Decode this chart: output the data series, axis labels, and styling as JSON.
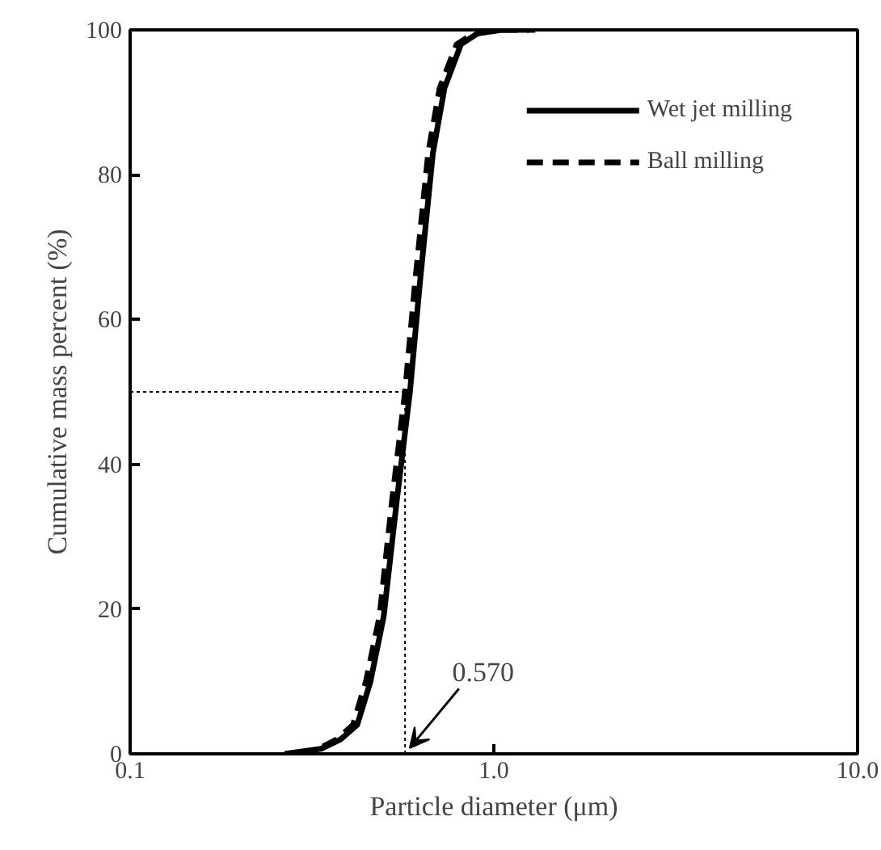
{
  "chart_data": {
    "type": "line",
    "xlabel": "Particle diameter (μm)",
    "ylabel": "Cumulative mass percent (%)",
    "log": "x",
    "xlim": [
      0.1,
      10
    ],
    "ylim": [
      0,
      100
    ],
    "xticks": [
      {
        "value": 0.1,
        "label": "0.1"
      },
      {
        "value": 1,
        "label": "1.0"
      },
      {
        "value": 10,
        "label": "10.0"
      }
    ],
    "yticks": [
      0,
      20,
      40,
      60,
      80,
      100
    ],
    "grid": false,
    "legend": "top right",
    "series": [
      {
        "name": "Wet jet milling",
        "color": "#000000",
        "line_style": "solid",
        "x": [
          0.266,
          0.335,
          0.379,
          0.421,
          0.458,
          0.498,
          0.541,
          0.588,
          0.626,
          0.68,
          0.732,
          0.812,
          0.901,
          1.05,
          1.3
        ],
        "values": [
          0,
          0.7,
          2,
          4,
          10,
          19,
          35,
          50,
          65,
          83,
          92,
          98,
          99.5,
          100,
          100
        ]
      },
      {
        "name": "Ball milling",
        "color": "#000000",
        "line_style": "dashed",
        "x": [
          0.29,
          0.33,
          0.37,
          0.41,
          0.445,
          0.485,
          0.525,
          0.57,
          0.607,
          0.66,
          0.71,
          0.79,
          0.88,
          1.02,
          1.25
        ],
        "values": [
          0,
          0.7,
          2,
          4,
          10,
          19,
          35,
          50,
          65,
          83,
          92,
          98,
          99.5,
          100,
          100
        ]
      }
    ],
    "ref_lines": [
      {
        "axis": "x",
        "value": 0.57,
        "line_style": "dotted"
      },
      {
        "axis": "y",
        "value": 50,
        "line_style": "dotted"
      }
    ],
    "annotations": [
      {
        "text": "0.570",
        "x": 0.57,
        "y": 0
      }
    ]
  }
}
